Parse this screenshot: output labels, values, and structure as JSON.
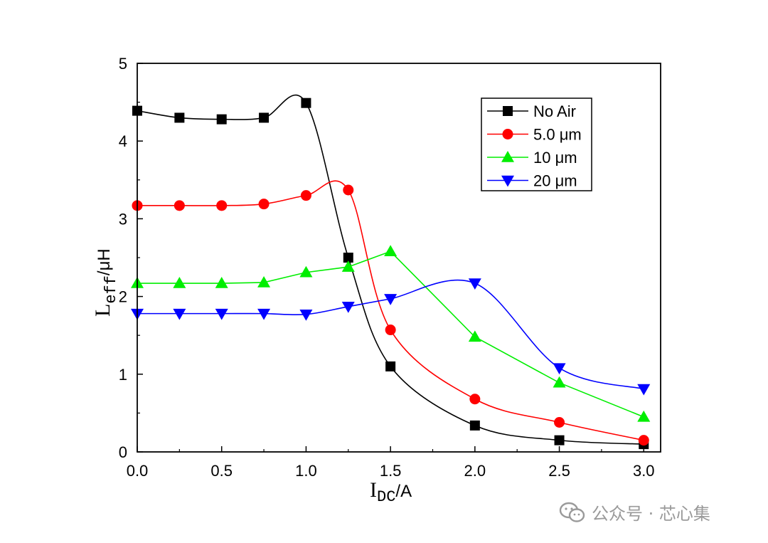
{
  "chart_data": {
    "type": "line",
    "xlabel": {
      "main": "I",
      "sub": "DC",
      "tail": "/A"
    },
    "ylabel": {
      "main": "L",
      "sub": "eff",
      "tail": "/μH"
    },
    "xlim": [
      0,
      3.1
    ],
    "ylim": [
      0,
      5
    ],
    "xticks": [
      0.0,
      0.5,
      1.0,
      1.5,
      2.0,
      2.5,
      3.0
    ],
    "xtick_labels": [
      "0.0",
      "0.5",
      "1.0",
      "1.5",
      "2.0",
      "2.5",
      "3.0"
    ],
    "yticks": [
      0,
      1,
      2,
      3,
      4,
      5
    ],
    "ytick_labels": [
      "0",
      "1",
      "2",
      "3",
      "4",
      "5"
    ],
    "grid": false,
    "legend_position": "top-right",
    "x": [
      0,
      0.25,
      0.5,
      0.75,
      1.0,
      1.25,
      1.5,
      2.0,
      2.5,
      3.0
    ],
    "series": [
      {
        "name": "No Air",
        "color": "#000000",
        "marker": "square",
        "values": [
          4.39,
          4.3,
          4.28,
          4.3,
          4.49,
          2.5,
          1.1,
          0.34,
          0.15,
          0.1
        ]
      },
      {
        "name": "5.0 μm",
        "color": "#ff0000",
        "marker": "circle",
        "values": [
          3.17,
          3.17,
          3.17,
          3.19,
          3.3,
          3.37,
          1.57,
          0.68,
          0.38,
          0.15
        ]
      },
      {
        "name": "10 μm",
        "color": "#00ee00",
        "marker": "triangle-up",
        "values": [
          2.17,
          2.17,
          2.17,
          2.18,
          2.31,
          2.38,
          2.58,
          1.48,
          0.89,
          0.45
        ]
      },
      {
        "name": "20 μm",
        "color": "#0000ff",
        "marker": "triangle-down",
        "values": [
          1.78,
          1.78,
          1.78,
          1.78,
          1.77,
          1.87,
          1.97,
          2.17,
          1.08,
          0.81
        ]
      }
    ]
  },
  "watermark": {
    "text": "公众号 · 芯心集"
  }
}
